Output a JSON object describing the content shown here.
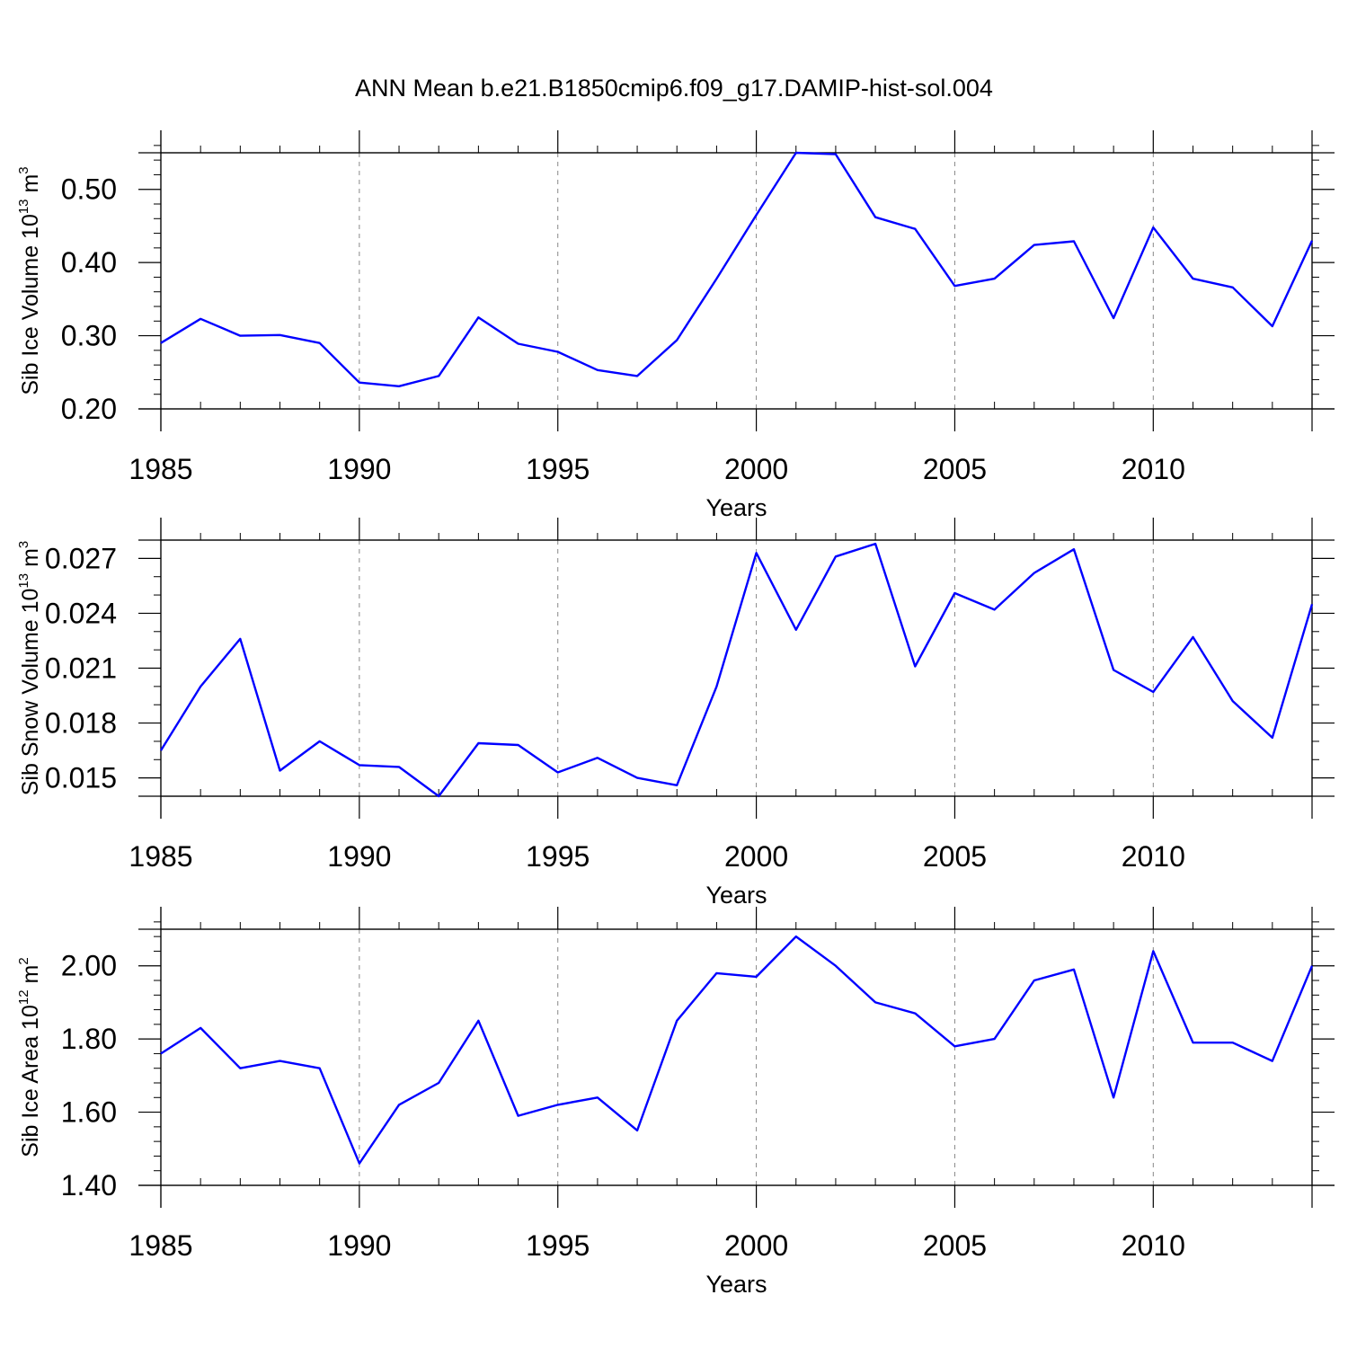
{
  "title": "ANN Mean b.e21.B1850cmip6.f09_g17.DAMIP-hist-sol.004",
  "colors": {
    "line": "#0000ff",
    "axis": "#000000",
    "grid": "#888888",
    "background": "#ffffff"
  },
  "chart_data": [
    {
      "type": "line",
      "name": "ice-volume",
      "title": "ANN Mean b.e21.B1850cmip6.f09_g17.DAMIP-hist-sol.004",
      "xlabel": "Years",
      "ylabel": {
        "prefix": "Sib Ice Volume 10",
        "exp": "13",
        "unit": " m",
        "unit_exp": "3"
      },
      "xlim": [
        1985,
        2014
      ],
      "ylim": [
        0.2,
        0.55
      ],
      "xticks": [
        1985,
        1990,
        1995,
        2000,
        2005,
        2010
      ],
      "xtick_labels": [
        "1985",
        "1990",
        "1995",
        "2000",
        "2005",
        "2010"
      ],
      "yticks": [
        0.2,
        0.3,
        0.4,
        0.5
      ],
      "ytick_labels": [
        "0.20",
        "0.30",
        "0.40",
        "0.50"
      ],
      "y_minor_step": 0.02,
      "x": [
        1985,
        1986,
        1987,
        1988,
        1989,
        1990,
        1991,
        1992,
        1993,
        1994,
        1995,
        1996,
        1997,
        1998,
        1999,
        2000,
        2001,
        2002,
        2003,
        2004,
        2005,
        2006,
        2007,
        2008,
        2009,
        2010,
        2011,
        2012,
        2013,
        2014
      ],
      "values": [
        0.29,
        0.323,
        0.3,
        0.301,
        0.29,
        0.236,
        0.231,
        0.245,
        0.325,
        0.289,
        0.278,
        0.253,
        0.245,
        0.294,
        0.378,
        0.465,
        0.55,
        0.548,
        0.462,
        0.446,
        0.368,
        0.378,
        0.424,
        0.429,
        0.324,
        0.448,
        0.378,
        0.366,
        0.313,
        0.43
      ]
    },
    {
      "type": "line",
      "name": "snow-volume",
      "xlabel": "Years",
      "ylabel": {
        "prefix": "Sib Snow Volume 10",
        "exp": "13",
        "unit": " m",
        "unit_exp": "3"
      },
      "xlim": [
        1985,
        2014
      ],
      "ylim": [
        0.014,
        0.028
      ],
      "xticks": [
        1985,
        1990,
        1995,
        2000,
        2005,
        2010
      ],
      "xtick_labels": [
        "1985",
        "1990",
        "1995",
        "2000",
        "2005",
        "2010"
      ],
      "yticks": [
        0.015,
        0.018,
        0.021,
        0.024,
        0.027
      ],
      "ytick_labels": [
        "0.015",
        "0.018",
        "0.021",
        "0.024",
        "0.027"
      ],
      "y_minor_step": 0.001,
      "x": [
        1985,
        1986,
        1987,
        1988,
        1989,
        1990,
        1991,
        1992,
        1993,
        1994,
        1995,
        1996,
        1997,
        1998,
        1999,
        2000,
        2001,
        2002,
        2003,
        2004,
        2005,
        2006,
        2007,
        2008,
        2009,
        2010,
        2011,
        2012,
        2013,
        2014
      ],
      "values": [
        0.0165,
        0.02,
        0.0226,
        0.0154,
        0.017,
        0.0157,
        0.0156,
        0.014,
        0.0169,
        0.0168,
        0.0153,
        0.0161,
        0.015,
        0.0146,
        0.02,
        0.0273,
        0.0231,
        0.0271,
        0.0278,
        0.0211,
        0.0251,
        0.0242,
        0.0262,
        0.0275,
        0.0209,
        0.0197,
        0.0227,
        0.0192,
        0.0172,
        0.0245
      ]
    },
    {
      "type": "line",
      "name": "ice-area",
      "xlabel": "Years",
      "ylabel": {
        "prefix": "Sib Ice Area 10",
        "exp": "12",
        "unit": " m",
        "unit_exp": "2"
      },
      "xlim": [
        1985,
        2014
      ],
      "ylim": [
        1.4,
        2.1
      ],
      "xticks": [
        1985,
        1990,
        1995,
        2000,
        2005,
        2010
      ],
      "xtick_labels": [
        "1985",
        "1990",
        "1995",
        "2000",
        "2005",
        "2010"
      ],
      "yticks": [
        1.4,
        1.6,
        1.8,
        2.0
      ],
      "ytick_labels": [
        "1.40",
        "1.60",
        "1.80",
        "2.00"
      ],
      "y_minor_step": 0.04,
      "x": [
        1985,
        1986,
        1987,
        1988,
        1989,
        1990,
        1991,
        1992,
        1993,
        1994,
        1995,
        1996,
        1997,
        1998,
        1999,
        2000,
        2001,
        2002,
        2003,
        2004,
        2005,
        2006,
        2007,
        2008,
        2009,
        2010,
        2011,
        2012,
        2013,
        2014
      ],
      "values": [
        1.76,
        1.83,
        1.72,
        1.74,
        1.72,
        1.46,
        1.62,
        1.68,
        1.85,
        1.59,
        1.62,
        1.64,
        1.55,
        1.85,
        1.98,
        1.97,
        2.08,
        2.0,
        1.9,
        1.87,
        1.78,
        1.8,
        1.96,
        1.99,
        1.64,
        2.04,
        1.79,
        1.79,
        1.74,
        2.0
      ]
    }
  ]
}
